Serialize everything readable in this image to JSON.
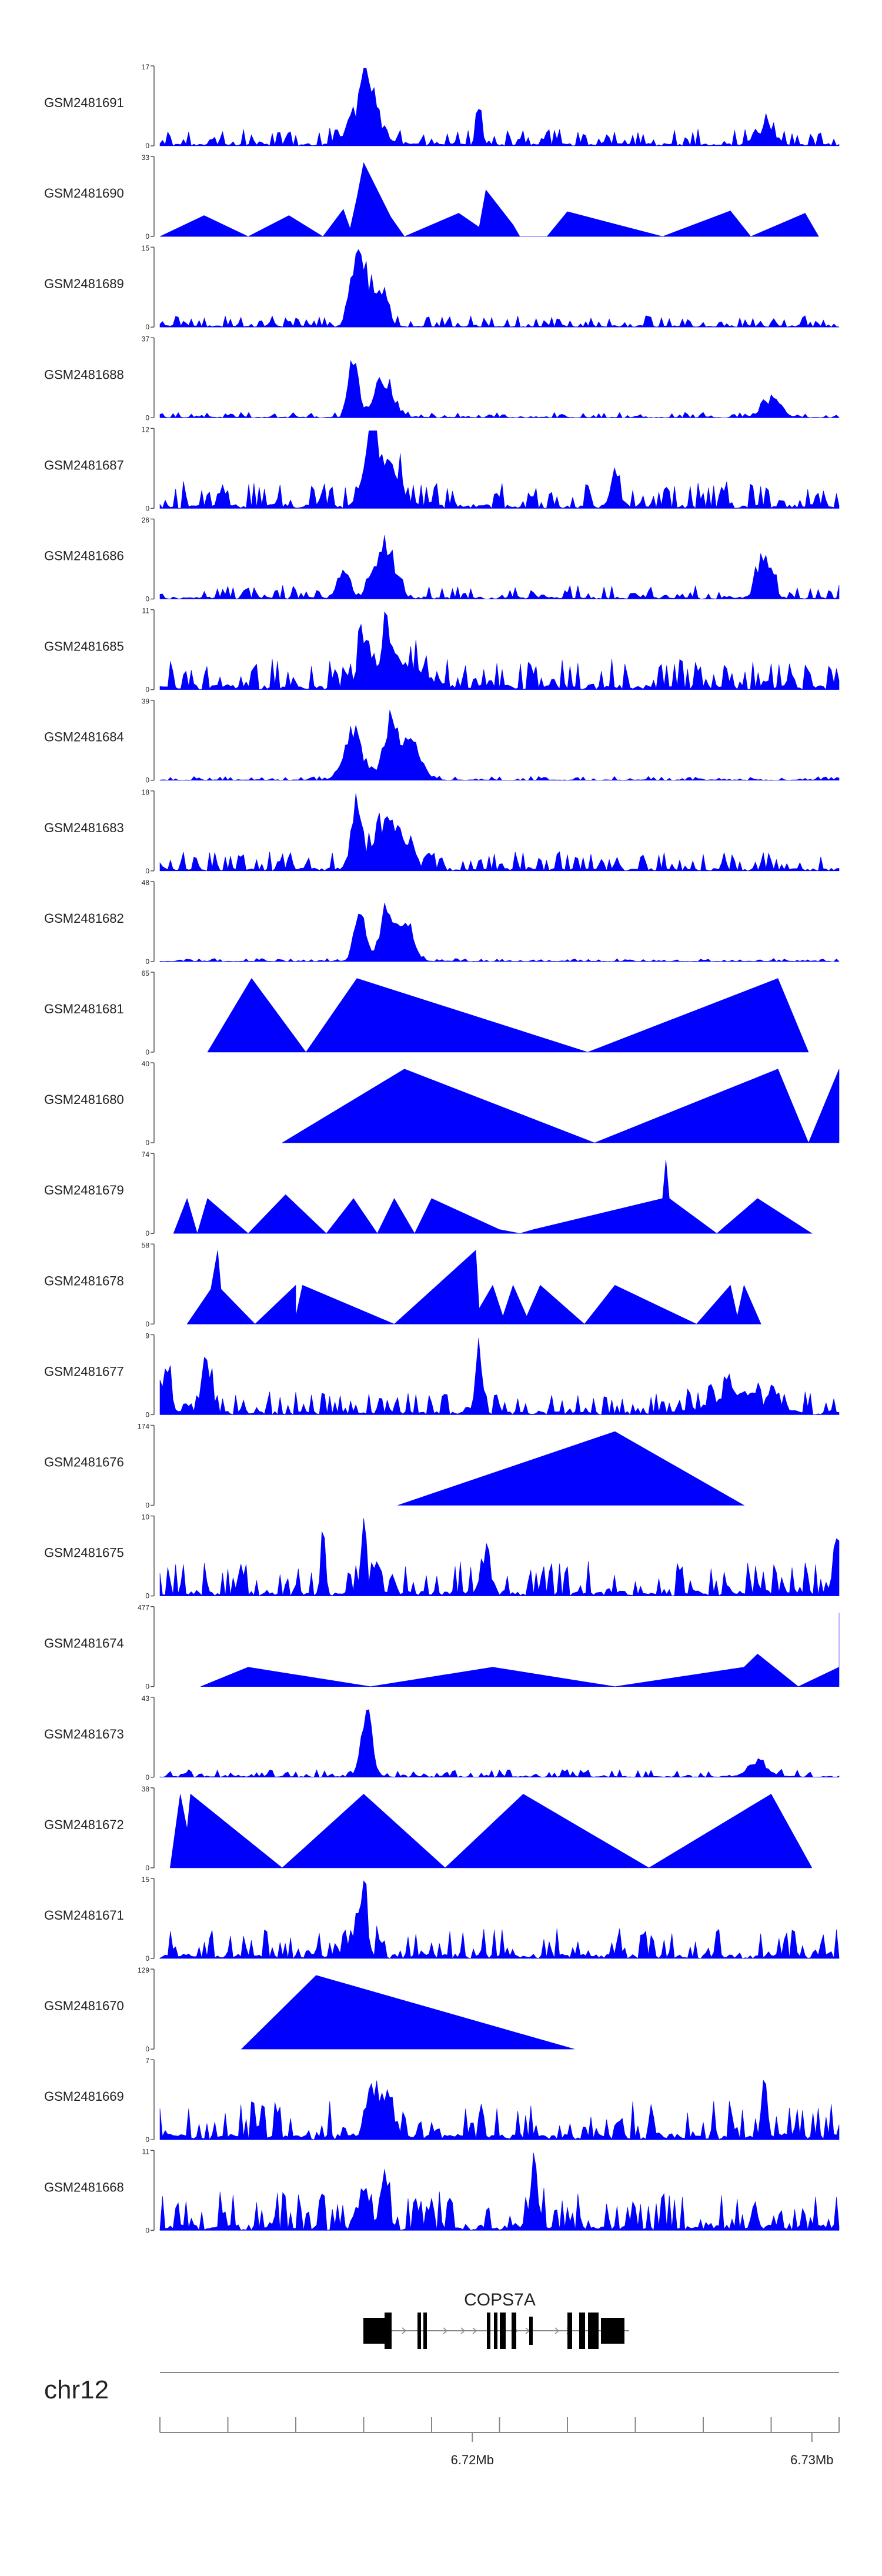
{
  "chart_data": {
    "type": "area",
    "title": "",
    "track_fill_color": "#0000FF",
    "gene_color": "#000000",
    "gene": {
      "name": "COPS7A"
    },
    "chromosome": "chr12",
    "genome_axis": {
      "range_mb": [
        6.7108,
        6.7308
      ],
      "tick_labels": [
        {
          "value": 6.72,
          "label": "6.72Mb"
        },
        {
          "value": 6.73,
          "label": "6.73Mb"
        }
      ],
      "minor_ticks": [
        6.7108,
        6.7128,
        6.7148,
        6.7168,
        6.7188,
        6.7208,
        6.7228,
        6.7248,
        6.7268,
        6.7288,
        6.7308
      ]
    },
    "tracks": [
      {
        "sample": "GSM2481691",
        "ymin": 0,
        "ymax": 17
      },
      {
        "sample": "GSM2481690",
        "ymin": 0,
        "ymax": 33
      },
      {
        "sample": "GSM2481689",
        "ymin": 0,
        "ymax": 15
      },
      {
        "sample": "GSM2481688",
        "ymin": 0,
        "ymax": 37
      },
      {
        "sample": "GSM2481687",
        "ymin": 0,
        "ymax": 12
      },
      {
        "sample": "GSM2481686",
        "ymin": 0,
        "ymax": 26
      },
      {
        "sample": "GSM2481685",
        "ymin": 0,
        "ymax": 11
      },
      {
        "sample": "GSM2481684",
        "ymin": 0,
        "ymax": 39
      },
      {
        "sample": "GSM2481683",
        "ymin": 0,
        "ymax": 18
      },
      {
        "sample": "GSM2481682",
        "ymin": 0,
        "ymax": 48
      },
      {
        "sample": "GSM2481681",
        "ymin": 0,
        "ymax": 65
      },
      {
        "sample": "GSM2481680",
        "ymin": 0,
        "ymax": 40
      },
      {
        "sample": "GSM2481679",
        "ymin": 0,
        "ymax": 74
      },
      {
        "sample": "GSM2481678",
        "ymin": 0,
        "ymax": 58
      },
      {
        "sample": "GSM2481677",
        "ymin": 0,
        "ymax": 9
      },
      {
        "sample": "GSM2481676",
        "ymin": 0,
        "ymax": 174
      },
      {
        "sample": "GSM2481675",
        "ymin": 0,
        "ymax": 10
      },
      {
        "sample": "GSM2481674",
        "ymin": 0,
        "ymax": 477
      },
      {
        "sample": "GSM2481673",
        "ymin": 0,
        "ymax": 43
      },
      {
        "sample": "GSM2481672",
        "ymin": 0,
        "ymax": 38
      },
      {
        "sample": "GSM2481671",
        "ymin": 0,
        "ymax": 15
      },
      {
        "sample": "GSM2481670",
        "ymin": 0,
        "ymax": 129
      },
      {
        "sample": "GSM2481669",
        "ymin": 0,
        "ymax": 7
      },
      {
        "sample": "GSM2481668",
        "ymin": 0,
        "ymax": 11
      }
    ]
  }
}
